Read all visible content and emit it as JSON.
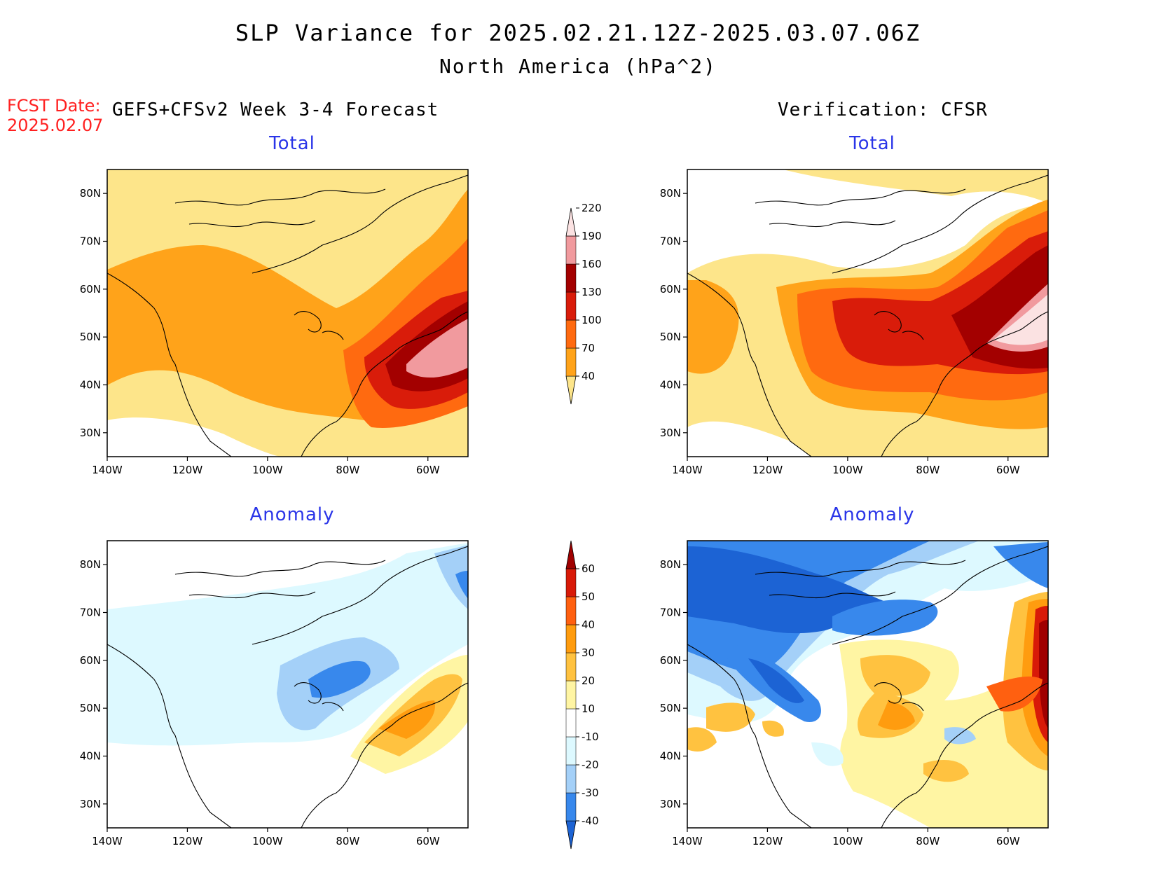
{
  "title": "SLP Variance for 2025.02.21.12Z-2025.03.07.06Z",
  "subtitle": "North America (hPa^2)",
  "fcst_date_label": "FCST Date:",
  "fcst_date_value": "2025.02.07",
  "left_header": "GEFS+CFSv2 Week 3-4 Forecast",
  "right_header": "Verification: CFSR",
  "panels": {
    "forecast_total": {
      "title": "Total"
    },
    "verification_total": {
      "title": "Total"
    },
    "forecast_anomaly": {
      "title": "Anomaly"
    },
    "verification_anomaly": {
      "title": "Anomaly"
    }
  },
  "axes": {
    "lat_labels": [
      "80N",
      "70N",
      "60N",
      "50N",
      "40N",
      "30N"
    ],
    "lon_labels": [
      "140W",
      "120W",
      "100W",
      "80W",
      "60W"
    ],
    "lat_range": [
      25,
      85
    ],
    "lon_range": [
      -140,
      -50
    ]
  },
  "total_colorbar": {
    "levels": [
      "40",
      "70",
      "100",
      "130",
      "160",
      "190",
      "220"
    ],
    "colors": [
      "#fde58a",
      "#ffa31a",
      "#ff6a10",
      "#d91c0a",
      "#a30000",
      "#f19a9e",
      "#fbe2e2"
    ]
  },
  "anomaly_colorbar": {
    "levels": [
      "-40",
      "-30",
      "-20",
      "-10",
      "10",
      "20",
      "30",
      "40",
      "50",
      "60"
    ],
    "colors": [
      "#1c63d4",
      "#3888ec",
      "#a4d0f8",
      "#ddf9ff",
      "#ffffff",
      "#fff5a3",
      "#ffc240",
      "#ff9c0f",
      "#ff6010",
      "#d81a08",
      "#a00000"
    ]
  },
  "colors": {
    "title_blue": "#2a35e8",
    "fcst_red": "#ff2020"
  }
}
